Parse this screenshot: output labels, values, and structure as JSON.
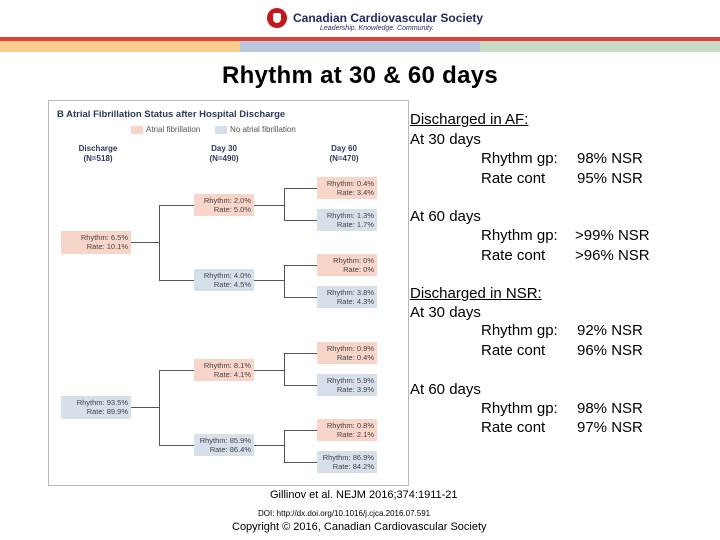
{
  "header": {
    "org_name": "Canadian Cardiovascular Society",
    "tagline": "Leadership. Knowledge. Community."
  },
  "slide_title": "Rhythm at 30 & 60 days",
  "figure": {
    "panel_title": "B  Atrial Fibrillation Status after Hospital Discharge",
    "legend": {
      "af": "Atrial fibrillation",
      "naf": "No atrial fibrillation"
    },
    "columns": {
      "discharge": {
        "label": "Discharge",
        "n": "(N=518)"
      },
      "day30": {
        "label": "Day 30",
        "n": "(N=490)"
      },
      "day60": {
        "label": "Day 60",
        "n": "(N=470)"
      }
    },
    "discharge_boxes": [
      {
        "l1": "Rhythm:  6.5%",
        "l2": "Rate: 10.1%"
      },
      {
        "l1": "Rhythm: 93.5%",
        "l2": "Rate: 89.9%"
      }
    ],
    "day30_boxes": [
      {
        "l1": "Rhythm: 2.0%",
        "l2": "Rate: 5.0%"
      },
      {
        "l1": "Rhythm: 4.0%",
        "l2": "Rate: 4.5%"
      },
      {
        "l1": "Rhythm: 8.1%",
        "l2": "Rate: 4.1%"
      },
      {
        "l1": "Rhythm: 85.9%",
        "l2": "Rate: 86.4%"
      }
    ],
    "day60_boxes": [
      {
        "l1": "Rhythm: 0.4%",
        "l2": "Rate: 3.4%"
      },
      {
        "l1": "Rhythm: 1.3%",
        "l2": "Rate: 1.7%"
      },
      {
        "l1": "Rhythm: 0%",
        "l2": "Rate: 0%"
      },
      {
        "l1": "Rhythm: 3.8%",
        "l2": "Rate: 4.3%"
      },
      {
        "l1": "Rhythm: 0.9%",
        "l2": "Rate: 0.4%"
      },
      {
        "l1": "Rhythm: 5.9%",
        "l2": "Rate: 3.9%"
      },
      {
        "l1": "Rhythm: 0.8%",
        "l2": "Rate: 2.1%"
      },
      {
        "l1": "Rhythm: 86.9%",
        "l2": "Rate: 84.2%"
      }
    ]
  },
  "summary": {
    "af_heading": "Discharged in AF:",
    "nsr_heading": "Discharged in NSR:",
    "at30": "At 30 days",
    "at60": "At 60 days",
    "rhythm_label": "Rhythm gp:",
    "rate_label": "Rate cont",
    "af_30_rhythm": "98% NSR",
    "af_30_rate": "95% NSR",
    "af_60_rhythm": ">99% NSR",
    "af_60_rate": ">96% NSR",
    "nsr_30_rhythm": "92% NSR",
    "nsr_30_rate": "96% NSR",
    "nsr_60_rhythm": "98% NSR",
    "nsr_60_rate": "97% NSR"
  },
  "footer": {
    "citation": "Gillinov et al. NEJM 2016;374:1911-21",
    "doi": "DOI: http://dx.doi.org/10.1016/j.cjca.2016.07.591",
    "copyright": "Copyright © 2016, Canadian Cardiovascular Society"
  },
  "colors": {
    "brand_red": "#c4161c",
    "af_fill": "#f8d5c9",
    "naf_fill": "#d6e0ea"
  }
}
